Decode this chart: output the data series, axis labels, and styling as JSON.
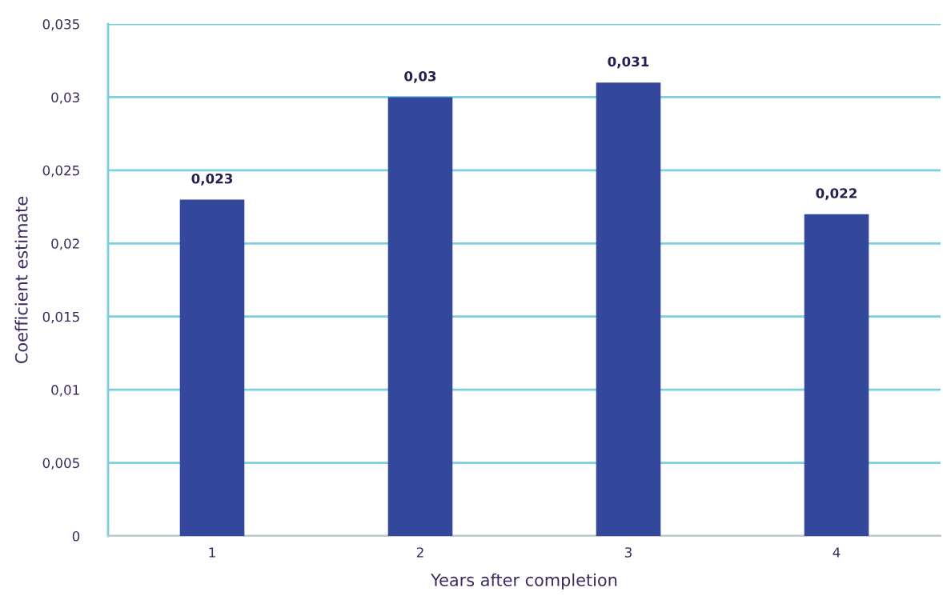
{
  "chart_data": {
    "type": "bar",
    "xlabel": "Years after completion",
    "ylabel": "Coefficient estimate",
    "categories": [
      "1",
      "2",
      "3",
      "4"
    ],
    "values": [
      0.023,
      0.03,
      0.031,
      0.022
    ],
    "value_labels": [
      "0,023",
      "0,03",
      "0,031",
      "0,022"
    ],
    "color": "#34489b",
    "ylim": [
      0,
      0.035
    ],
    "yticks": [
      0,
      {
        "value": 0.005,
        "label": "0,005"
      },
      {
        "value": 0.01,
        "label": "0,01"
      },
      {
        "value": 0.015,
        "label": "0,015"
      },
      {
        "value": 0.02,
        "label": "0,02"
      },
      {
        "value": 0.025,
        "label": "0,025"
      },
      {
        "value": 0.03,
        "label": "0,03"
      },
      {
        "value": 0.035,
        "label": "0,035"
      }
    ],
    "grid": "y",
    "legend": false
  }
}
